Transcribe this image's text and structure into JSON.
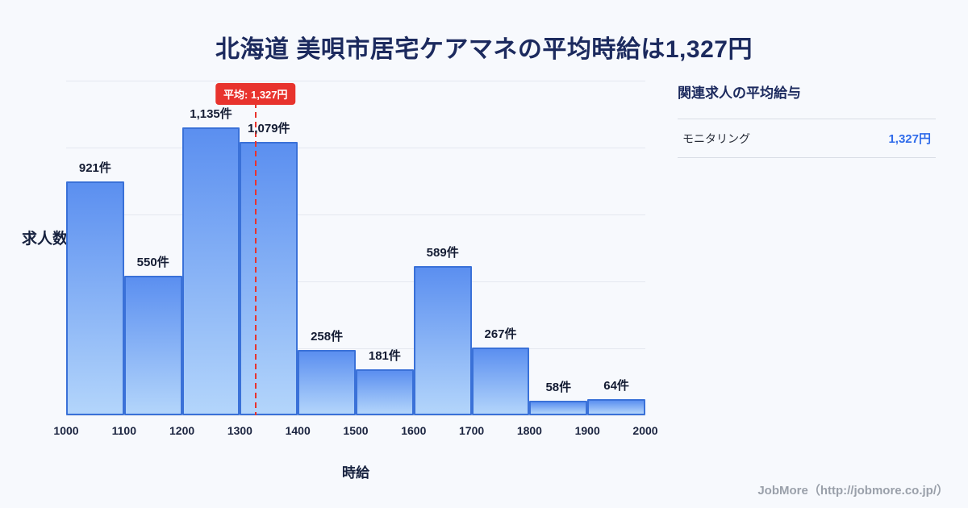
{
  "page": {
    "title": "北海道 美唄市居宅ケアマネの平均時給は1,327円",
    "footer": "JobMore（http://jobmore.co.jp/）"
  },
  "chart_data": {
    "type": "bar",
    "title": "北海道 美唄市居宅ケアマネの平均時給は1,327円",
    "xlabel": "時給",
    "ylabel": "求人数",
    "bins": [
      1000,
      1100,
      1200,
      1300,
      1400,
      1500,
      1600,
      1700,
      1800,
      1900,
      2000
    ],
    "x_ticks": [
      "1000",
      "1100",
      "1200",
      "1300",
      "1400",
      "1500",
      "1600",
      "1700",
      "1800",
      "1900",
      "2000"
    ],
    "values": [
      921,
      550,
      1135,
      1079,
      258,
      181,
      589,
      267,
      58,
      64
    ],
    "bar_labels": [
      "921件",
      "550件",
      "1,135件",
      "1,079件",
      "258件",
      "181件",
      "589件",
      "267件",
      "58件",
      "64件"
    ],
    "mean": 1327,
    "mean_label": "平均: 1,327円",
    "ylim": [
      0,
      1320
    ],
    "grid": true,
    "legend": "none",
    "bar_color_top": "#5b8ff0",
    "bar_color_bottom": "#b3d5fb",
    "bar_border_color": "#3a71d8",
    "mean_line_color": "#e8332d"
  },
  "side_panel": {
    "heading": "関連求人の平均給与",
    "rows": [
      {
        "label": "モニタリング",
        "value": "1,327円"
      }
    ]
  }
}
